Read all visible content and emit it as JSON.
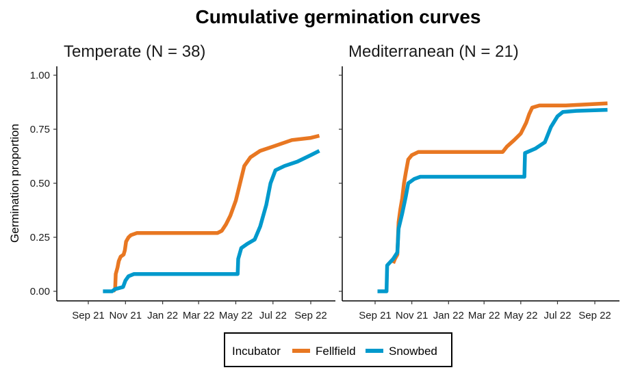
{
  "chart_data": {
    "type": "line",
    "title": "Cumulative germination curves",
    "ylabel": "Germination proportion",
    "ylim": [
      0,
      1
    ],
    "yticks": [
      "0.00",
      "0.25",
      "0.50",
      "0.75",
      "1.00"
    ],
    "xticks": [
      "Sep 21",
      "Nov 21",
      "Jan 22",
      "Mar 22",
      "May 22",
      "Jul 22",
      "Sep 22"
    ],
    "xtick_dates": [
      "2021-09-01",
      "2021-11-01",
      "2022-01-01",
      "2022-03-01",
      "2022-05-01",
      "2022-07-01",
      "2022-09-01"
    ],
    "legend": {
      "title": "Incubator",
      "position": "bottom"
    },
    "colors": {
      "Fellfield": "#E87722",
      "Snowbed": "#0099CC"
    },
    "panels": [
      {
        "title": "Temperate (N = 38)",
        "series": [
          {
            "name": "Fellfield",
            "points": [
              [
                "2021-10-12",
                0.0
              ],
              [
                "2021-10-15",
                0.01
              ],
              [
                "2021-10-16",
                0.08
              ],
              [
                "2021-10-19",
                0.11
              ],
              [
                "2021-10-21",
                0.14
              ],
              [
                "2021-10-24",
                0.16
              ],
              [
                "2021-10-29",
                0.17
              ],
              [
                "2021-10-31",
                0.19
              ],
              [
                "2021-11-02",
                0.23
              ],
              [
                "2021-11-06",
                0.25
              ],
              [
                "2021-11-10",
                0.26
              ],
              [
                "2021-11-20",
                0.27
              ],
              [
                "2022-04-01",
                0.27
              ],
              [
                "2022-04-08",
                0.28
              ],
              [
                "2022-04-15",
                0.31
              ],
              [
                "2022-04-22",
                0.35
              ],
              [
                "2022-05-01",
                0.42
              ],
              [
                "2022-05-08",
                0.5
              ],
              [
                "2022-05-15",
                0.58
              ],
              [
                "2022-05-25",
                0.62
              ],
              [
                "2022-06-10",
                0.65
              ],
              [
                "2022-07-01",
                0.67
              ],
              [
                "2022-08-01",
                0.7
              ],
              [
                "2022-09-01",
                0.71
              ],
              [
                "2022-09-15",
                0.72
              ]
            ]
          },
          {
            "name": "Snowbed",
            "points": [
              [
                "2021-09-25",
                0.0
              ],
              [
                "2021-10-10",
                0.0
              ],
              [
                "2021-10-15",
                0.01
              ],
              [
                "2021-10-28",
                0.02
              ],
              [
                "2021-11-01",
                0.05
              ],
              [
                "2021-11-06",
                0.07
              ],
              [
                "2021-11-15",
                0.08
              ],
              [
                "2022-05-04",
                0.08
              ],
              [
                "2022-05-05",
                0.15
              ],
              [
                "2022-05-10",
                0.2
              ],
              [
                "2022-05-20",
                0.22
              ],
              [
                "2022-06-01",
                0.24
              ],
              [
                "2022-06-10",
                0.3
              ],
              [
                "2022-06-20",
                0.4
              ],
              [
                "2022-06-27",
                0.5
              ],
              [
                "2022-07-05",
                0.56
              ],
              [
                "2022-07-20",
                0.58
              ],
              [
                "2022-08-10",
                0.6
              ],
              [
                "2022-09-01",
                0.63
              ],
              [
                "2022-09-15",
                0.65
              ]
            ]
          }
        ]
      },
      {
        "title": "Mediterranean (N = 21)",
        "series": [
          {
            "name": "Fellfield",
            "points": [
              [
                "2021-10-01",
                0.13
              ],
              [
                "2021-10-04",
                0.15
              ],
              [
                "2021-10-08",
                0.17
              ],
              [
                "2021-10-10",
                0.32
              ],
              [
                "2021-10-13",
                0.38
              ],
              [
                "2021-10-16",
                0.43
              ],
              [
                "2021-10-19",
                0.5
              ],
              [
                "2021-10-22",
                0.55
              ],
              [
                "2021-10-26",
                0.61
              ],
              [
                "2021-11-01",
                0.63
              ],
              [
                "2021-11-12",
                0.645
              ],
              [
                "2022-04-01",
                0.645
              ],
              [
                "2022-04-08",
                0.67
              ],
              [
                "2022-04-20",
                0.7
              ],
              [
                "2022-05-01",
                0.73
              ],
              [
                "2022-05-10",
                0.78
              ],
              [
                "2022-05-15",
                0.82
              ],
              [
                "2022-05-20",
                0.85
              ],
              [
                "2022-06-01",
                0.86
              ],
              [
                "2022-07-15",
                0.86
              ],
              [
                "2022-09-22",
                0.87
              ]
            ]
          },
          {
            "name": "Snowbed",
            "points": [
              [
                "2021-09-05",
                0.0
              ],
              [
                "2021-09-20",
                0.0
              ],
              [
                "2021-09-21",
                0.12
              ],
              [
                "2021-10-01",
                0.15
              ],
              [
                "2021-10-08",
                0.18
              ],
              [
                "2021-10-10",
                0.29
              ],
              [
                "2021-10-16",
                0.36
              ],
              [
                "2021-10-22",
                0.44
              ],
              [
                "2021-10-26",
                0.5
              ],
              [
                "2021-11-05",
                0.52
              ],
              [
                "2021-11-15",
                0.53
              ],
              [
                "2022-05-07",
                0.53
              ],
              [
                "2022-05-08",
                0.64
              ],
              [
                "2022-05-25",
                0.66
              ],
              [
                "2022-06-10",
                0.69
              ],
              [
                "2022-06-20",
                0.76
              ],
              [
                "2022-07-01",
                0.81
              ],
              [
                "2022-07-10",
                0.83
              ],
              [
                "2022-08-01",
                0.835
              ],
              [
                "2022-09-22",
                0.84
              ]
            ]
          }
        ]
      }
    ]
  }
}
